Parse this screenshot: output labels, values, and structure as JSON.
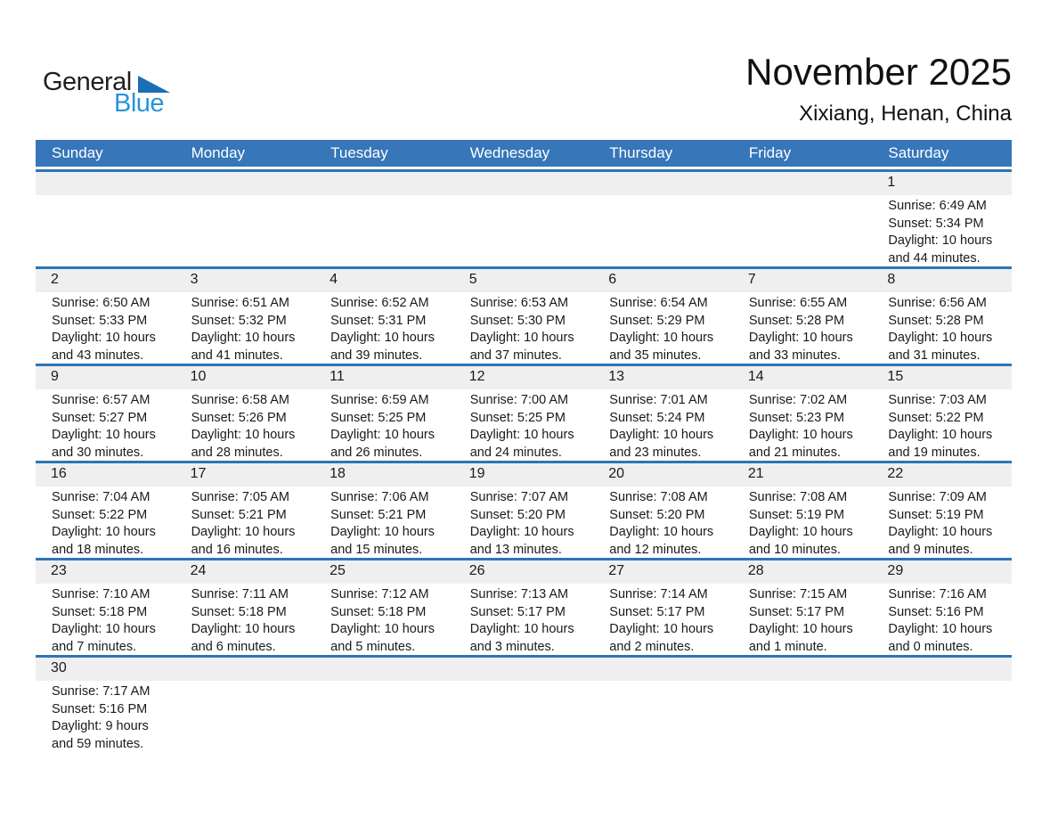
{
  "logo": {
    "general": "General",
    "blue": "Blue"
  },
  "header": {
    "title": "November 2025",
    "subtitle": "Xixiang, Henan, China"
  },
  "weekdays": [
    "Sunday",
    "Monday",
    "Tuesday",
    "Wednesday",
    "Thursday",
    "Friday",
    "Saturday"
  ],
  "colors": {
    "weekday_header_bg": "#3676b9",
    "week_divider": "#2e75b6",
    "day_number_band": "#efefef",
    "logo_triangle_blue": "#1a6fb5",
    "logo_blue_text": "#2a94d8",
    "weekday_text": "#ffffff",
    "body_text": "#1a1a1a"
  },
  "weeks": [
    {
      "cells": [
        {
          "day": "",
          "lines": []
        },
        {
          "day": "",
          "lines": []
        },
        {
          "day": "",
          "lines": []
        },
        {
          "day": "",
          "lines": []
        },
        {
          "day": "",
          "lines": []
        },
        {
          "day": "",
          "lines": []
        },
        {
          "day": "1",
          "lines": [
            "Sunrise: 6:49 AM",
            "Sunset: 5:34 PM",
            "Daylight: 10 hours",
            "and 44 minutes."
          ]
        }
      ]
    },
    {
      "cells": [
        {
          "day": "2",
          "lines": [
            "Sunrise: 6:50 AM",
            "Sunset: 5:33 PM",
            "Daylight: 10 hours",
            "and 43 minutes."
          ]
        },
        {
          "day": "3",
          "lines": [
            "Sunrise: 6:51 AM",
            "Sunset: 5:32 PM",
            "Daylight: 10 hours",
            "and 41 minutes."
          ]
        },
        {
          "day": "4",
          "lines": [
            "Sunrise: 6:52 AM",
            "Sunset: 5:31 PM",
            "Daylight: 10 hours",
            "and 39 minutes."
          ]
        },
        {
          "day": "5",
          "lines": [
            "Sunrise: 6:53 AM",
            "Sunset: 5:30 PM",
            "Daylight: 10 hours",
            "and 37 minutes."
          ]
        },
        {
          "day": "6",
          "lines": [
            "Sunrise: 6:54 AM",
            "Sunset: 5:29 PM",
            "Daylight: 10 hours",
            "and 35 minutes."
          ]
        },
        {
          "day": "7",
          "lines": [
            "Sunrise: 6:55 AM",
            "Sunset: 5:28 PM",
            "Daylight: 10 hours",
            "and 33 minutes."
          ]
        },
        {
          "day": "8",
          "lines": [
            "Sunrise: 6:56 AM",
            "Sunset: 5:28 PM",
            "Daylight: 10 hours",
            "and 31 minutes."
          ]
        }
      ]
    },
    {
      "cells": [
        {
          "day": "9",
          "lines": [
            "Sunrise: 6:57 AM",
            "Sunset: 5:27 PM",
            "Daylight: 10 hours",
            "and 30 minutes."
          ]
        },
        {
          "day": "10",
          "lines": [
            "Sunrise: 6:58 AM",
            "Sunset: 5:26 PM",
            "Daylight: 10 hours",
            "and 28 minutes."
          ]
        },
        {
          "day": "11",
          "lines": [
            "Sunrise: 6:59 AM",
            "Sunset: 5:25 PM",
            "Daylight: 10 hours",
            "and 26 minutes."
          ]
        },
        {
          "day": "12",
          "lines": [
            "Sunrise: 7:00 AM",
            "Sunset: 5:25 PM",
            "Daylight: 10 hours",
            "and 24 minutes."
          ]
        },
        {
          "day": "13",
          "lines": [
            "Sunrise: 7:01 AM",
            "Sunset: 5:24 PM",
            "Daylight: 10 hours",
            "and 23 minutes."
          ]
        },
        {
          "day": "14",
          "lines": [
            "Sunrise: 7:02 AM",
            "Sunset: 5:23 PM",
            "Daylight: 10 hours",
            "and 21 minutes."
          ]
        },
        {
          "day": "15",
          "lines": [
            "Sunrise: 7:03 AM",
            "Sunset: 5:22 PM",
            "Daylight: 10 hours",
            "and 19 minutes."
          ]
        }
      ]
    },
    {
      "cells": [
        {
          "day": "16",
          "lines": [
            "Sunrise: 7:04 AM",
            "Sunset: 5:22 PM",
            "Daylight: 10 hours",
            "and 18 minutes."
          ]
        },
        {
          "day": "17",
          "lines": [
            "Sunrise: 7:05 AM",
            "Sunset: 5:21 PM",
            "Daylight: 10 hours",
            "and 16 minutes."
          ]
        },
        {
          "day": "18",
          "lines": [
            "Sunrise: 7:06 AM",
            "Sunset: 5:21 PM",
            "Daylight: 10 hours",
            "and 15 minutes."
          ]
        },
        {
          "day": "19",
          "lines": [
            "Sunrise: 7:07 AM",
            "Sunset: 5:20 PM",
            "Daylight: 10 hours",
            "and 13 minutes."
          ]
        },
        {
          "day": "20",
          "lines": [
            "Sunrise: 7:08 AM",
            "Sunset: 5:20 PM",
            "Daylight: 10 hours",
            "and 12 minutes."
          ]
        },
        {
          "day": "21",
          "lines": [
            "Sunrise: 7:08 AM",
            "Sunset: 5:19 PM",
            "Daylight: 10 hours",
            "and 10 minutes."
          ]
        },
        {
          "day": "22",
          "lines": [
            "Sunrise: 7:09 AM",
            "Sunset: 5:19 PM",
            "Daylight: 10 hours",
            "and 9 minutes."
          ]
        }
      ]
    },
    {
      "cells": [
        {
          "day": "23",
          "lines": [
            "Sunrise: 7:10 AM",
            "Sunset: 5:18 PM",
            "Daylight: 10 hours",
            "and 7 minutes."
          ]
        },
        {
          "day": "24",
          "lines": [
            "Sunrise: 7:11 AM",
            "Sunset: 5:18 PM",
            "Daylight: 10 hours",
            "and 6 minutes."
          ]
        },
        {
          "day": "25",
          "lines": [
            "Sunrise: 7:12 AM",
            "Sunset: 5:18 PM",
            "Daylight: 10 hours",
            "and 5 minutes."
          ]
        },
        {
          "day": "26",
          "lines": [
            "Sunrise: 7:13 AM",
            "Sunset: 5:17 PM",
            "Daylight: 10 hours",
            "and 3 minutes."
          ]
        },
        {
          "day": "27",
          "lines": [
            "Sunrise: 7:14 AM",
            "Sunset: 5:17 PM",
            "Daylight: 10 hours",
            "and 2 minutes."
          ]
        },
        {
          "day": "28",
          "lines": [
            "Sunrise: 7:15 AM",
            "Sunset: 5:17 PM",
            "Daylight: 10 hours",
            "and 1 minute."
          ]
        },
        {
          "day": "29",
          "lines": [
            "Sunrise: 7:16 AM",
            "Sunset: 5:16 PM",
            "Daylight: 10 hours",
            "and 0 minutes."
          ]
        }
      ]
    },
    {
      "cells": [
        {
          "day": "30",
          "lines": [
            "Sunrise: 7:17 AM",
            "Sunset: 5:16 PM",
            "Daylight: 9 hours",
            "and 59 minutes."
          ]
        },
        {
          "day": "",
          "lines": []
        },
        {
          "day": "",
          "lines": []
        },
        {
          "day": "",
          "lines": []
        },
        {
          "day": "",
          "lines": []
        },
        {
          "day": "",
          "lines": []
        },
        {
          "day": "",
          "lines": []
        }
      ]
    }
  ]
}
